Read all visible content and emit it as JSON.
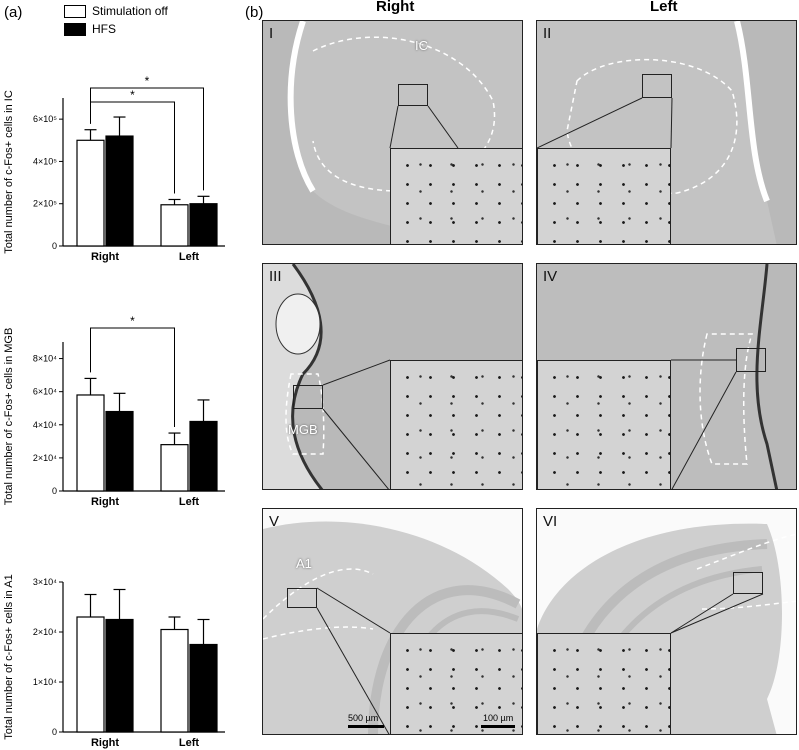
{
  "panel_labels": {
    "a": "(a)",
    "b": "(b)"
  },
  "legend": [
    {
      "label": "Stimulation off",
      "color": "#ffffff"
    },
    {
      "label": "HFS",
      "color": "#000000"
    }
  ],
  "chart_data": [
    {
      "type": "bar",
      "categories": [
        "Right",
        "Left"
      ],
      "ylabel": "Total number of c-Fos+ cells in IC",
      "ylim": [
        0,
        700000
      ],
      "yticks": [
        0,
        200000,
        400000,
        600000
      ],
      "yticklabels": [
        "0",
        "2×10⁵",
        "4×10⁵",
        "6×10⁵"
      ],
      "series": [
        {
          "name": "Stimulation off",
          "values": [
            500000,
            195000
          ],
          "errors": [
            50000,
            25000
          ]
        },
        {
          "name": "HFS",
          "values": [
            520000,
            200000
          ],
          "errors": [
            90000,
            35000
          ]
        }
      ],
      "significance": [
        {
          "label": "*",
          "from": [
            0,
            0
          ],
          "to": [
            1,
            0
          ]
        },
        {
          "label": "*",
          "from": [
            0,
            0
          ],
          "to": [
            1,
            1
          ]
        }
      ]
    },
    {
      "type": "bar",
      "categories": [
        "Right",
        "Left"
      ],
      "ylabel": "Total number of c-Fos+ cells in MGB",
      "ylim": [
        0,
        90000
      ],
      "yticks": [
        0,
        20000,
        40000,
        60000,
        80000
      ],
      "yticklabels": [
        "0",
        "2×10⁴",
        "4×10⁴",
        "6×10⁴",
        "8×10⁴"
      ],
      "series": [
        {
          "name": "Stimulation off",
          "values": [
            58000,
            28000
          ],
          "errors": [
            10000,
            7000
          ]
        },
        {
          "name": "HFS",
          "values": [
            48000,
            42000
          ],
          "errors": [
            11000,
            13000
          ]
        }
      ],
      "significance": [
        {
          "label": "*",
          "from": [
            0,
            0
          ],
          "to": [
            1,
            0
          ]
        }
      ]
    },
    {
      "type": "bar",
      "categories": [
        "Right",
        "Left"
      ],
      "ylabel": "Total number of c-Fos+ cells in A1",
      "ylim": [
        0,
        30000
      ],
      "yticks": [
        0,
        10000,
        20000,
        30000
      ],
      "yticklabels": [
        "0",
        "1×10⁴",
        "2×10⁴",
        "3×10⁴"
      ],
      "series": [
        {
          "name": "Stimulation off",
          "values": [
            23000,
            20500
          ],
          "errors": [
            4500,
            2500
          ]
        },
        {
          "name": "HFS",
          "values": [
            22500,
            17500
          ],
          "errors": [
            6000,
            5000
          ]
        }
      ],
      "significance": []
    }
  ],
  "micrographs": {
    "column_headers": [
      "Right",
      "Left"
    ],
    "panels": [
      {
        "roman": "I",
        "region": "IC"
      },
      {
        "roman": "II",
        "region": ""
      },
      {
        "roman": "III",
        "region": "MGB"
      },
      {
        "roman": "IV",
        "region": ""
      },
      {
        "roman": "V",
        "region": "A1"
      },
      {
        "roman": "VI",
        "region": ""
      }
    ],
    "scalebars": [
      "500 µm",
      "100 µm"
    ]
  }
}
